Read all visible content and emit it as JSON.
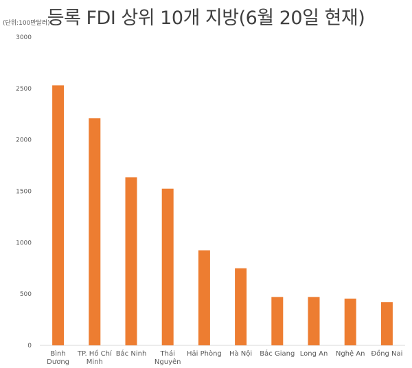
{
  "title": "등록 FDI 상위 10개 지방(6월 20일 현재)",
  "unit_label": "(단위:100만달러)",
  "colors": {
    "bar": "#ED7D31",
    "axis": "#D9D9D9",
    "text": "#595959"
  },
  "chart_data": {
    "type": "bar",
    "title": "등록 FDI 상위 10개 지방(6월 20일 현재)",
    "ylabel": "(단위:100만달러)",
    "xlabel": "",
    "ylim": [
      0,
      3000
    ],
    "yticks": [
      "3000",
      "2500",
      "2000",
      "1500",
      "1000",
      "500",
      "0"
    ],
    "grid": false,
    "categories": [
      [
        "Bình",
        "Dương"
      ],
      [
        "TP. Hồ Chí",
        "Minh"
      ],
      [
        "Bắc Ninh"
      ],
      [
        "Thái",
        "Nguyên"
      ],
      [
        "Hải Phòng"
      ],
      [
        "Hà Nội"
      ],
      [
        "Bắc Giang"
      ],
      [
        "Long An"
      ],
      [
        "Nghệ An"
      ],
      [
        "Đồng Nai"
      ]
    ],
    "values": [
      2530,
      2210,
      1635,
      1525,
      925,
      750,
      470,
      470,
      455,
      420
    ]
  }
}
